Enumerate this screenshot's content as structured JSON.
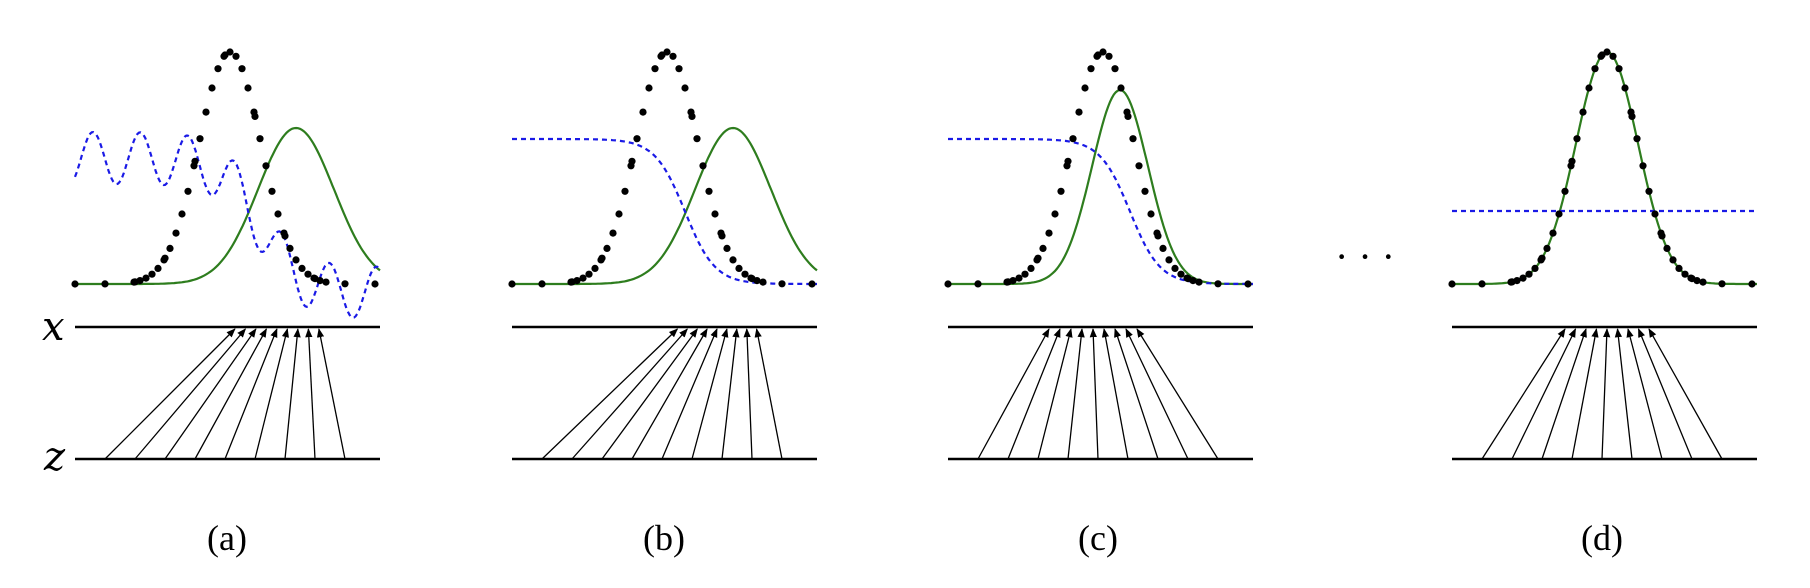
{
  "axis_labels": {
    "x": "x",
    "z": "z"
  },
  "ellipsis": "· · ·",
  "colors": {
    "data": "#000000",
    "generator": "#2e7d1e",
    "discriminator": "#1a1ae6"
  },
  "panels": [
    {
      "label": "(a)",
      "stage": 0
    },
    {
      "label": "(b)",
      "stage": 1
    },
    {
      "label": "(c)",
      "stage": 2
    },
    {
      "label": "(d)",
      "stage": 3
    }
  ]
}
